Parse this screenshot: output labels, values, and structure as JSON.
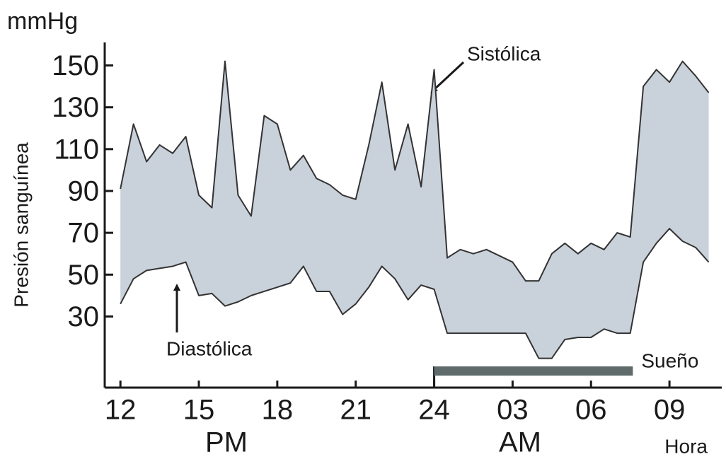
{
  "chart_data": {
    "type": "line",
    "y_unit": "mmHg",
    "y_label": "Presión sanguínea",
    "x_label": "Hora",
    "periods": [
      "PM",
      "AM"
    ],
    "x": [
      12,
      12.5,
      13,
      13.5,
      14,
      14.5,
      15,
      15.5,
      16,
      16.5,
      17,
      17.5,
      18,
      18.5,
      19,
      19.5,
      20,
      20.5,
      21,
      21.5,
      22,
      22.5,
      23,
      23.5,
      24,
      24.5,
      25,
      25.5,
      26,
      26.5,
      27,
      27.5,
      28,
      28.5,
      29,
      29.5,
      30,
      30.5,
      31,
      31.5,
      32,
      32.5,
      33,
      33.5,
      34,
      34.5
    ],
    "series": [
      {
        "name": "Sistólica",
        "color": "#333333",
        "values": [
          91,
          122,
          104,
          112,
          108,
          116,
          88,
          82,
          152,
          88,
          78,
          126,
          122,
          100,
          107,
          96,
          93,
          88,
          86,
          112,
          142,
          100,
          122,
          92,
          148,
          58,
          62,
          60,
          62,
          59,
          56,
          47,
          47,
          60,
          65,
          60,
          65,
          62,
          70,
          68,
          140,
          148,
          142,
          152,
          145,
          137
        ]
      },
      {
        "name": "Diastólica",
        "color": "#333333",
        "values": [
          36,
          48,
          52,
          53,
          54,
          56,
          40,
          41,
          35,
          37,
          40,
          42,
          44,
          46,
          54,
          42,
          42,
          31,
          36,
          44,
          54,
          48,
          38,
          45,
          43,
          22,
          22,
          22,
          22,
          22,
          22,
          22,
          10,
          10,
          19,
          20,
          20,
          24,
          22,
          22,
          56,
          65,
          72,
          66,
          63,
          56
        ]
      }
    ],
    "fill_color": "#c9d1da",
    "sleep": {
      "label": "Sueño",
      "x": [
        24,
        31.6
      ],
      "color": "#5f6b6b"
    },
    "xlim": [
      11.4,
      35
    ],
    "xticks": [
      12,
      15,
      18,
      21,
      24,
      {
        "value": 27,
        "label": "03"
      },
      {
        "value": 30,
        "label": "06"
      },
      {
        "value": 33,
        "label": "09"
      }
    ],
    "ylim": [
      -4,
      161
    ],
    "yticks": [
      30,
      50,
      70,
      90,
      110,
      130,
      150
    ],
    "grid": false
  }
}
